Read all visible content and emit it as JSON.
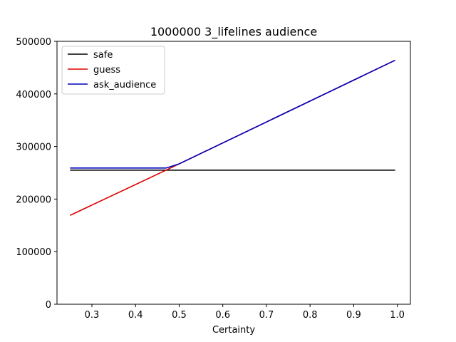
{
  "chart_data": {
    "type": "line",
    "title": "1000000 3_lifelines audience",
    "xlabel": "Certainty",
    "ylabel": "",
    "xlim": [
      0.22,
      1.03
    ],
    "ylim": [
      0,
      500000
    ],
    "xticks": [
      0.3,
      0.4,
      0.5,
      0.6,
      0.7,
      0.8,
      0.9,
      1.0
    ],
    "xtick_labels": [
      "0.3",
      "0.4",
      "0.5",
      "0.6",
      "0.7",
      "0.8",
      "0.9",
      "1.0"
    ],
    "yticks": [
      0,
      100000,
      200000,
      300000,
      400000,
      500000
    ],
    "ytick_labels": [
      "0",
      "100000",
      "200000",
      "300000",
      "400000",
      "500000"
    ],
    "grid": false,
    "legend": "upper-left",
    "series": [
      {
        "name": "safe",
        "color": "#000000",
        "x": [
          0.25,
          0.995
        ],
        "y": [
          255000,
          255000
        ]
      },
      {
        "name": "guess",
        "color": "#dd0000",
        "x": [
          0.25,
          0.47,
          0.5,
          0.995
        ],
        "y": [
          169000,
          255000,
          267000,
          464000
        ]
      },
      {
        "name": "ask_audience",
        "color": "#0000bb",
        "x": [
          0.25,
          0.47,
          0.5,
          0.995
        ],
        "y": [
          259000,
          259000,
          267000,
          464000
        ]
      }
    ]
  }
}
